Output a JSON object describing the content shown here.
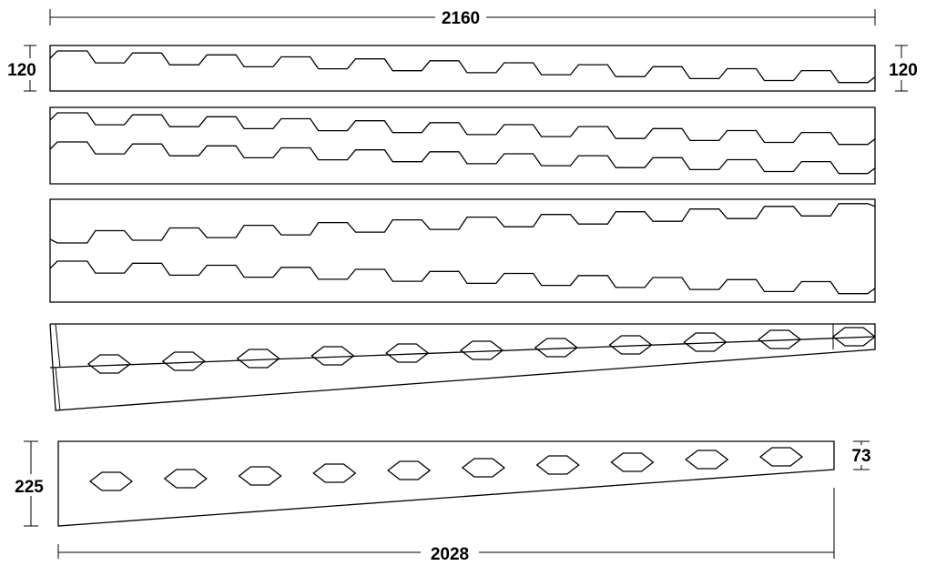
{
  "dimensions": {
    "overall_length": "2160",
    "left_height": "120",
    "right_height": "120",
    "tapered_left_height": "225",
    "tapered_right_height": "73",
    "tapered_length": "2028"
  },
  "drawing": {
    "line_color": "#000000",
    "background": "#ffffff",
    "hexagonal_openings_per_beam": 10,
    "zigzag_teeth_per_strip": 11
  }
}
